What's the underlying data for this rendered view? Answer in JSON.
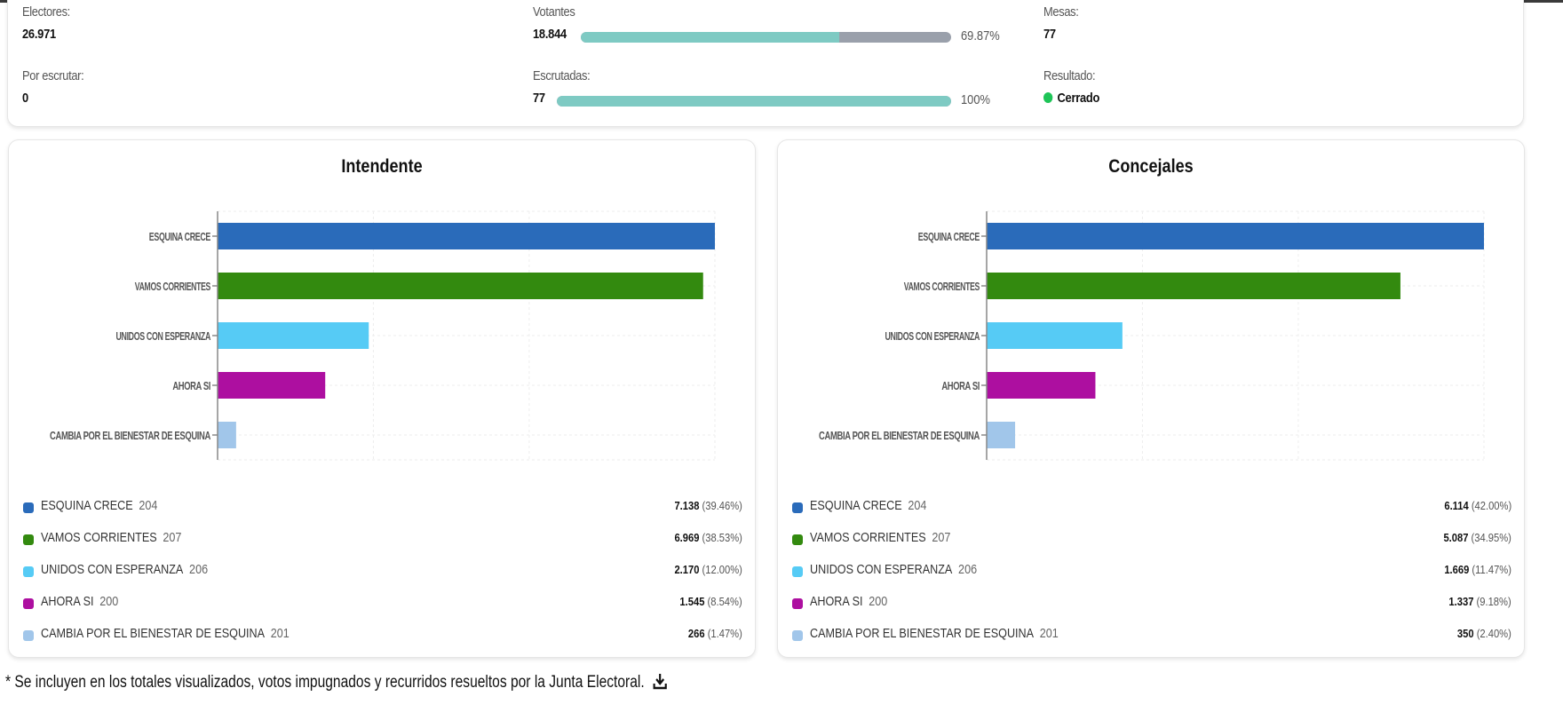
{
  "stats": {
    "electores": {
      "label": "Electores:",
      "value": "26.971"
    },
    "votantes": {
      "label": "Votantes",
      "value": "18.844",
      "percent_label": "69.87%",
      "progress": 69.87
    },
    "mesas": {
      "label": "Mesas:",
      "value": "77"
    },
    "por_escrutar": {
      "label": "Por escrutar:",
      "value": "0"
    },
    "escrutadas": {
      "label": "Escrutadas:",
      "value": "77",
      "percent_label": "100%",
      "progress": 100
    },
    "resultado": {
      "label": "Resultado:",
      "value": "Cerrado",
      "status_color": "#1ec457"
    }
  },
  "colors": {
    "progress_fill": "#7ecac3",
    "progress_track": "#9aa0ab"
  },
  "chart_data": [
    {
      "type": "bar",
      "orientation": "horizontal",
      "title": "Intendente",
      "categories": [
        "ESQUINA CRECE",
        "VAMOS CORRIENTES",
        "UNIDOS CON ESPERANZA",
        "AHORA SI",
        "CAMBIA POR EL BIENESTAR DE ESQUINA"
      ],
      "values": [
        7138,
        6969,
        2170,
        1545,
        266
      ],
      "colors": [
        "#2a6bba",
        "#338a0f",
        "#56cbf5",
        "#ad0fa0",
        "#a1c6ea"
      ],
      "xlim": [
        0,
        7138
      ],
      "grid": true,
      "legend": [
        {
          "name": "ESQUINA CRECE",
          "list": "204",
          "votes": "7.138",
          "pct": "(39.46%)"
        },
        {
          "name": "VAMOS CORRIENTES",
          "list": "207",
          "votes": "6.969",
          "pct": "(38.53%)"
        },
        {
          "name": "UNIDOS CON ESPERANZA",
          "list": "206",
          "votes": "2.170",
          "pct": "(12.00%)"
        },
        {
          "name": "AHORA SI",
          "list": "200",
          "votes": "1.545",
          "pct": "(8.54%)"
        },
        {
          "name": "CAMBIA POR EL BIENESTAR DE ESQUINA",
          "list": "201",
          "votes": "266",
          "pct": "(1.47%)"
        }
      ]
    },
    {
      "type": "bar",
      "orientation": "horizontal",
      "title": "Concejales",
      "categories": [
        "ESQUINA CRECE",
        "VAMOS CORRIENTES",
        "UNIDOS CON ESPERANZA",
        "AHORA SI",
        "CAMBIA POR EL BIENESTAR DE ESQUINA"
      ],
      "values": [
        6114,
        5087,
        1669,
        1337,
        350
      ],
      "colors": [
        "#2a6bba",
        "#338a0f",
        "#56cbf5",
        "#ad0fa0",
        "#a1c6ea"
      ],
      "xlim": [
        0,
        6114
      ],
      "grid": true,
      "legend": [
        {
          "name": "ESQUINA CRECE",
          "list": "204",
          "votes": "6.114",
          "pct": "(42.00%)"
        },
        {
          "name": "VAMOS CORRIENTES",
          "list": "207",
          "votes": "5.087",
          "pct": "(34.95%)"
        },
        {
          "name": "UNIDOS CON ESPERANZA",
          "list": "206",
          "votes": "1.669",
          "pct": "(11.47%)"
        },
        {
          "name": "AHORA SI",
          "list": "200",
          "votes": "1.337",
          "pct": "(9.18%)"
        },
        {
          "name": "CAMBIA POR EL BIENESTAR DE ESQUINA",
          "list": "201",
          "votes": "350",
          "pct": "(2.40%)"
        }
      ]
    }
  ],
  "footnote": "* Se incluyen en los totales visualizados, votos impugnados y recurridos resueltos por la Junta Electoral.",
  "icons": {
    "download": "download-icon"
  }
}
